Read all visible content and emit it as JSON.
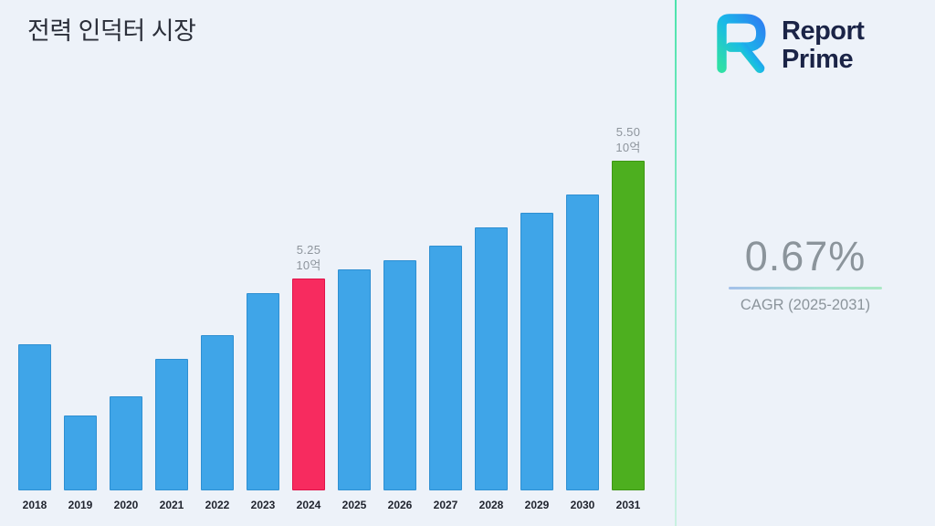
{
  "title": "전력 인덕터 시장",
  "chart_data": {
    "type": "bar",
    "title": "전력 인덕터 시장",
    "categories": [
      "2018",
      "2019",
      "2020",
      "2021",
      "2022",
      "2023",
      "2024",
      "2025",
      "2026",
      "2027",
      "2028",
      "2029",
      "2030",
      "2031"
    ],
    "values": [
      5.11,
      4.96,
      5.0,
      5.08,
      5.13,
      5.22,
      5.25,
      5.27,
      5.29,
      5.32,
      5.36,
      5.39,
      5.43,
      5.5
    ],
    "unit": "10억",
    "xlabel": "",
    "ylabel": "",
    "ylim": [
      4.8,
      5.6
    ],
    "grid": false,
    "legend": false,
    "labeled_bars": [
      {
        "category": "2024",
        "value_label": "5.25",
        "unit_label": "10억"
      },
      {
        "category": "2031",
        "value_label": "5.50",
        "unit_label": "10억"
      }
    ],
    "highlight": {
      "2024": "pink",
      "2031": "green"
    },
    "colors": {
      "default": "#3FA5E8",
      "default_border": "#2E8FD2",
      "pink": "#F72B5F",
      "pink_border": "#E0134A",
      "green": "#4DAF1F",
      "green_border": "#3E9714"
    }
  },
  "logo": {
    "line1": "Report",
    "line2": "Prime"
  },
  "cagr": {
    "value": "0.67%",
    "label": "CAGR (2025-2031)"
  },
  "theme": {
    "background": "#EDF2F9",
    "title_color": "#2B2F3A",
    "label_gray": "#8D949C",
    "divider_green": "#4BE3AC",
    "logo_navy": "#1B2447"
  }
}
